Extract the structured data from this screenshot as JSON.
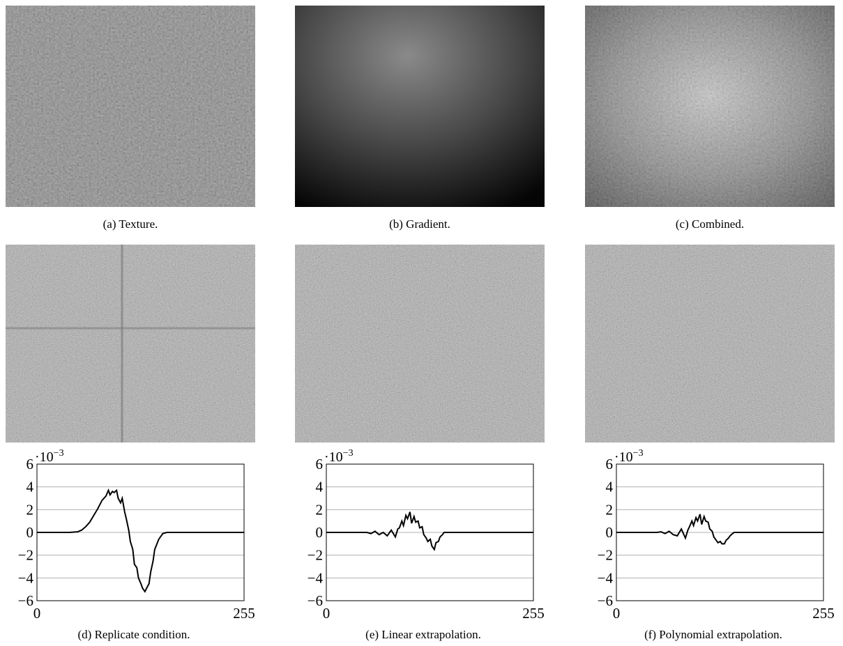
{
  "panels": [
    {
      "caption": "(a) Texture."
    },
    {
      "caption": "(b) Gradient."
    },
    {
      "caption": "(c) Combined."
    }
  ],
  "chart_data": [
    {
      "type": "line",
      "caption": "(d) Replicate condition.",
      "y_multiplier": "·10",
      "y_multiplier_exponent": "−3",
      "xlim": [
        0,
        255
      ],
      "xticks": [
        0,
        255
      ],
      "ylim": [
        -6,
        6
      ],
      "yticks": [
        {
          "value": -6,
          "label": "−6"
        },
        {
          "value": -4,
          "label": "−4"
        },
        {
          "value": -2,
          "label": "−2"
        },
        0,
        2,
        4,
        6
      ],
      "grid": true,
      "x": [
        0,
        40,
        50,
        55,
        60,
        65,
        70,
        75,
        80,
        85,
        88,
        90,
        93,
        95,
        98,
        100,
        103,
        105,
        108,
        110,
        113,
        115,
        118,
        120,
        123,
        125,
        128,
        130,
        133,
        135,
        138,
        140,
        143,
        145,
        150,
        155,
        160,
        165,
        170,
        255
      ],
      "values": [
        0,
        0,
        0.05,
        0.2,
        0.5,
        0.9,
        1.5,
        2.1,
        2.8,
        3.2,
        3.7,
        3.3,
        3.6,
        3.5,
        3.7,
        3.0,
        2.6,
        3.0,
        1.8,
        1.2,
        0.2,
        -0.8,
        -1.5,
        -2.8,
        -3.1,
        -4.0,
        -4.5,
        -4.9,
        -5.2,
        -4.9,
        -4.5,
        -3.5,
        -2.5,
        -1.5,
        -0.6,
        -0.1,
        0,
        0,
        0,
        0
      ],
      "color": "#000000"
    },
    {
      "type": "line",
      "caption": "(e) Linear extrapolation.",
      "y_multiplier": "·10",
      "y_multiplier_exponent": "−3",
      "xlim": [
        0,
        255
      ],
      "xticks": [
        0,
        255
      ],
      "ylim": [
        -6,
        6
      ],
      "yticks": [
        {
          "value": -6,
          "label": "−6"
        },
        {
          "value": -4,
          "label": "−4"
        },
        {
          "value": -2,
          "label": "−2"
        },
        0,
        2,
        4,
        6
      ],
      "grid": true,
      "x": [
        0,
        40,
        50,
        55,
        60,
        65,
        70,
        75,
        80,
        85,
        88,
        90,
        93,
        95,
        98,
        100,
        103,
        105,
        108,
        110,
        113,
        115,
        118,
        120,
        123,
        125,
        128,
        130,
        133,
        135,
        138,
        140,
        143,
        145,
        150,
        155,
        160,
        255
      ],
      "values": [
        0,
        0,
        0,
        -0.1,
        0.1,
        -0.2,
        0,
        -0.3,
        0.2,
        -0.4,
        0.3,
        0.4,
        1.0,
        0.6,
        1.5,
        1.2,
        1.8,
        0.8,
        1.4,
        0.9,
        1.0,
        0.4,
        0.5,
        -0.2,
        -0.5,
        -0.8,
        -0.6,
        -1.2,
        -1.5,
        -0.9,
        -0.8,
        -0.4,
        -0.2,
        0,
        0,
        0,
        0,
        0
      ],
      "color": "#000000"
    },
    {
      "type": "line",
      "caption": "(f) Polynomial extrapolation.",
      "y_multiplier": "·10",
      "y_multiplier_exponent": "−3",
      "xlim": [
        0,
        255
      ],
      "xticks": [
        0,
        255
      ],
      "ylim": [
        -6,
        6
      ],
      "yticks": [
        {
          "value": -6,
          "label": "−6"
        },
        {
          "value": -4,
          "label": "−4"
        },
        {
          "value": -2,
          "label": "−2"
        },
        0,
        2,
        4,
        6
      ],
      "grid": true,
      "x": [
        0,
        40,
        50,
        55,
        60,
        65,
        70,
        75,
        80,
        85,
        88,
        90,
        93,
        95,
        98,
        100,
        103,
        105,
        108,
        110,
        113,
        115,
        118,
        120,
        123,
        125,
        128,
        130,
        133,
        135,
        138,
        140,
        143,
        145,
        150,
        155,
        160,
        255
      ],
      "values": [
        0,
        0,
        0,
        0.05,
        -0.1,
        0.1,
        -0.2,
        -0.3,
        0.3,
        -0.5,
        0.2,
        0.5,
        1.0,
        0.6,
        1.3,
        1.0,
        1.6,
        0.7,
        1.4,
        1.0,
        0.9,
        0.3,
        0.1,
        -0.4,
        -0.7,
        -0.9,
        -0.8,
        -1.0,
        -1.0,
        -0.7,
        -0.5,
        -0.3,
        -0.1,
        0,
        0,
        0,
        0,
        0
      ],
      "color": "#000000"
    }
  ]
}
